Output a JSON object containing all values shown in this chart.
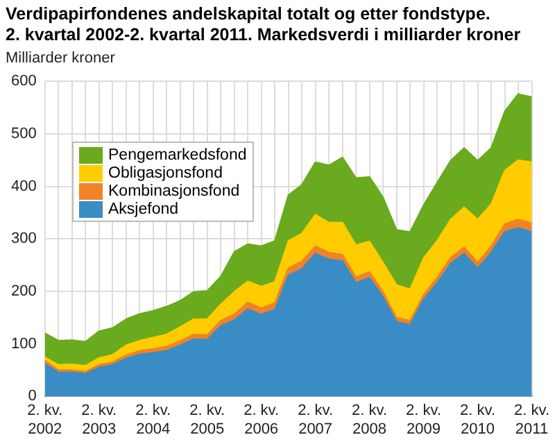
{
  "chart_data": {
    "type": "area",
    "title": "Verdipapirfondenes andelskapital totalt og etter fondstype.\n2. kvartal 2002-2. kvartal 2011. Markedsverdi i milliarder kroner",
    "ylabel": "Milliarder kroner",
    "categories": [
      "2. kv.\n2002",
      null,
      null,
      null,
      "2. kv.\n2003",
      null,
      null,
      null,
      "2. kv.\n2004",
      null,
      null,
      null,
      "2. kv.\n2005",
      null,
      null,
      null,
      "2. kv.\n2006",
      null,
      null,
      null,
      "2. kv.\n2007",
      null,
      null,
      null,
      "2. kv.\n2008",
      null,
      null,
      null,
      "2. kv.\n2009",
      null,
      null,
      null,
      "2. kv.\n2010",
      null,
      null,
      null,
      "2. kv.\n2011"
    ],
    "stacked": true,
    "series": [
      {
        "name": "Aksjefond",
        "color": "#3a8dc4",
        "values": [
          62,
          46,
          46,
          43,
          55,
          60,
          72,
          80,
          83,
          87,
          97,
          109,
          108,
          134,
          145,
          166,
          156,
          165,
          230,
          243,
          272,
          261,
          258,
          216,
          226,
          189,
          142,
          136,
          184,
          216,
          253,
          272,
          244,
          274,
          313,
          321,
          313
        ]
      },
      {
        "name": "Kombinasjonsfond",
        "color": "#f08228",
        "values": [
          6,
          4,
          4,
          4,
          5,
          5,
          6,
          7,
          7,
          8,
          8,
          9,
          9,
          10,
          11,
          13,
          12,
          13,
          14,
          14,
          14,
          13,
          12,
          11,
          11,
          10,
          8,
          8,
          9,
          10,
          11,
          12,
          11,
          12,
          15,
          16,
          17
        ]
      },
      {
        "name": "Obligasjonsfond",
        "color": "#ffcc00",
        "values": [
          6,
          10,
          11,
          11,
          13,
          14,
          19,
          19,
          22,
          23,
          27,
          29,
          30,
          31,
          43,
          40,
          41,
          40,
          52,
          53,
          60,
          57,
          61,
          61,
          58,
          56,
          62,
          60,
          70,
          70,
          73,
          76,
          82,
          80,
          102,
          113,
          116
        ]
      },
      {
        "name": "Pengemarkedsfond",
        "color": "#6aaa1e",
        "values": [
          46,
          46,
          46,
          46,
          51,
          51,
          50,
          51,
          51,
          53,
          50,
          52,
          54,
          53,
          76,
          71,
          77,
          78,
          87,
          93,
          100,
          109,
          124,
          128,
          123,
          124,
          105,
          109,
          101,
          111,
          112,
          113,
          112,
          107,
          113,
          126,
          124
        ]
      }
    ],
    "ylim": [
      0,
      600
    ],
    "yticks": [
      0,
      100,
      200,
      300,
      400,
      500,
      600
    ],
    "grid": true,
    "legend": "top left"
  }
}
